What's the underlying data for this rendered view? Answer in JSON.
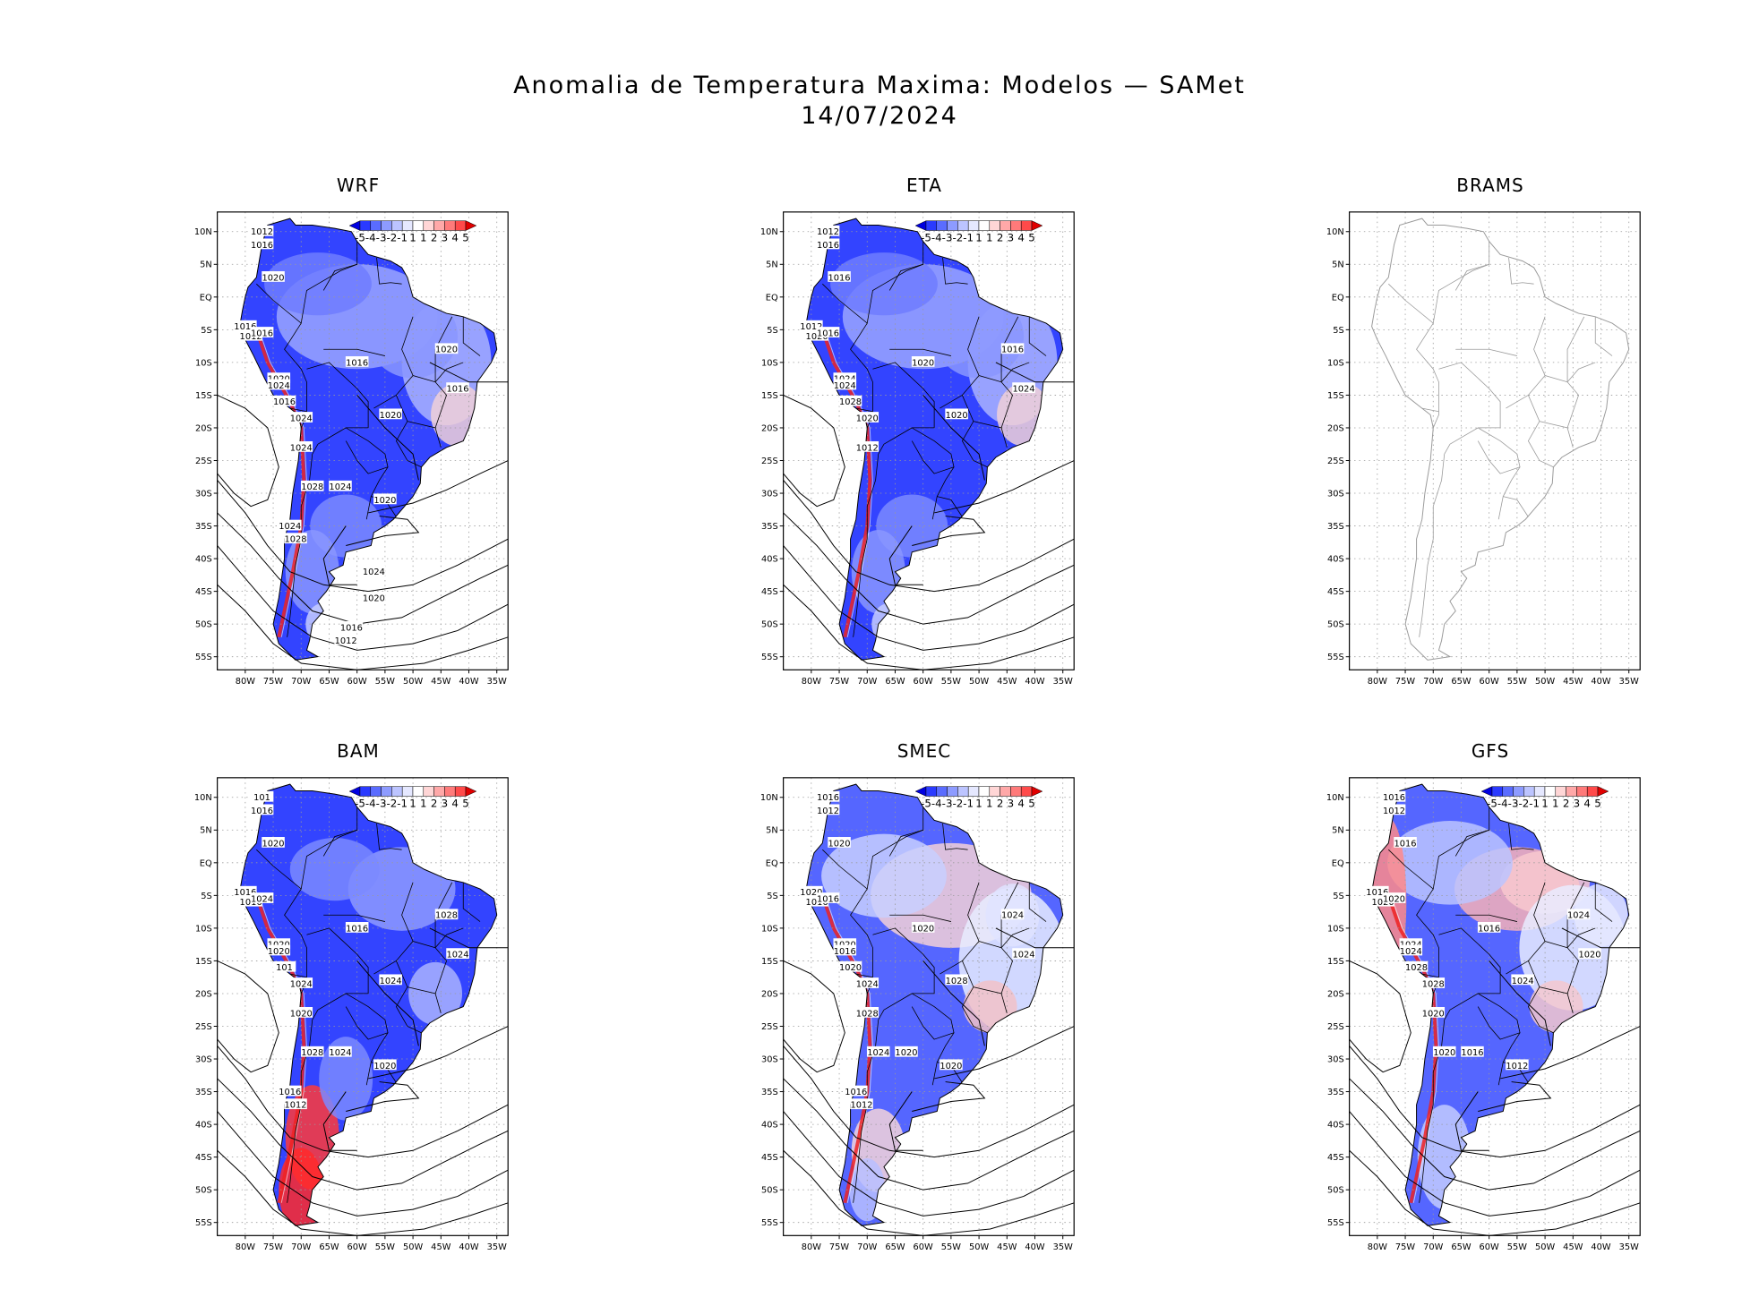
{
  "figure": {
    "title": "Anomalia de Temperatura Maxima: Modelos — SAMet",
    "date": "14/07/2024"
  },
  "axes": {
    "lat_labels": [
      "10N",
      "5N",
      "EQ",
      "5S",
      "10S",
      "15S",
      "20S",
      "25S",
      "30S",
      "35S",
      "40S",
      "45S",
      "50S",
      "55S"
    ],
    "lon_labels": [
      "80W",
      "75W",
      "70W",
      "65W",
      "60W",
      "55W",
      "50W",
      "45W",
      "40W",
      "35W"
    ]
  },
  "colorbar": {
    "labels": [
      "-5",
      "-4",
      "-3",
      "-2",
      "-1",
      "1",
      "1",
      "2",
      "3",
      "4",
      "5"
    ],
    "colors": [
      "#0000e0",
      "#2a3aff",
      "#5a6cff",
      "#8d9bff",
      "#bcc4ff",
      "#e5e8ff",
      "#ffffff",
      "#ffd6d6",
      "#ffa8a8",
      "#ff7a7a",
      "#ff4a4a",
      "#e00000"
    ]
  },
  "panels": [
    {
      "name": "WRF",
      "has_data": true,
      "style": "blue",
      "isobars": [
        {
          "text": "1012"
        },
        {
          "text": "1016"
        },
        {
          "text": "1020"
        },
        {
          "text": "1016"
        },
        {
          "text": "1012"
        },
        {
          "text": "1016"
        },
        {
          "text": "1016"
        },
        {
          "text": "1020"
        },
        {
          "text": "1024"
        },
        {
          "text": "1016"
        },
        {
          "text": "1020"
        },
        {
          "text": "1016"
        },
        {
          "text": "1024"
        },
        {
          "text": "1020"
        },
        {
          "text": "1024"
        },
        {
          "text": "1028"
        },
        {
          "text": "1024"
        },
        {
          "text": "1020"
        },
        {
          "text": "1024"
        },
        {
          "text": "1028"
        },
        {
          "text": "1024"
        },
        {
          "text": "1020"
        },
        {
          "text": "1016"
        },
        {
          "text": "1012"
        }
      ]
    },
    {
      "name": "ETA",
      "has_data": true,
      "style": "blue",
      "isobars": [
        {
          "text": "1012"
        },
        {
          "text": "1016"
        },
        {
          "text": "1016"
        },
        {
          "text": "1012"
        },
        {
          "text": "1020"
        },
        {
          "text": "1016"
        },
        {
          "text": "1020"
        },
        {
          "text": "1024"
        },
        {
          "text": "1024"
        },
        {
          "text": "1028"
        },
        {
          "text": "1020"
        },
        {
          "text": "1024"
        },
        {
          "text": "1020"
        },
        {
          "text": "1016"
        },
        {
          "text": "1012"
        }
      ]
    },
    {
      "name": "BRAMS",
      "has_data": false,
      "style": "empty",
      "isobars": []
    },
    {
      "name": "BAM",
      "has_data": true,
      "style": "bam",
      "isobars": [
        {
          "text": "101"
        },
        {
          "text": "1016"
        },
        {
          "text": "1020"
        },
        {
          "text": "1016"
        },
        {
          "text": "1016"
        },
        {
          "text": "1024"
        },
        {
          "text": "1016"
        },
        {
          "text": "1020"
        },
        {
          "text": "1020"
        },
        {
          "text": "101"
        },
        {
          "text": "1024"
        },
        {
          "text": "1024"
        },
        {
          "text": "1024"
        },
        {
          "text": "1028"
        },
        {
          "text": "1020"
        },
        {
          "text": "1028"
        },
        {
          "text": "1024"
        },
        {
          "text": "1020"
        },
        {
          "text": "1016"
        },
        {
          "text": "1012"
        }
      ]
    },
    {
      "name": "SMEC",
      "has_data": true,
      "style": "smec",
      "isobars": [
        {
          "text": "1016"
        },
        {
          "text": "1012"
        },
        {
          "text": "1020"
        },
        {
          "text": "1020"
        },
        {
          "text": "1016"
        },
        {
          "text": "1016"
        },
        {
          "text": "1020"
        },
        {
          "text": "1020"
        },
        {
          "text": "1016"
        },
        {
          "text": "1020"
        },
        {
          "text": "1028"
        },
        {
          "text": "1024"
        },
        {
          "text": "1024"
        },
        {
          "text": "1024"
        },
        {
          "text": "1028"
        },
        {
          "text": "1024"
        },
        {
          "text": "1020"
        },
        {
          "text": "1020"
        },
        {
          "text": "1016"
        },
        {
          "text": "1012"
        }
      ]
    },
    {
      "name": "GFS",
      "has_data": true,
      "style": "gfs",
      "isobars": [
        {
          "text": "1016"
        },
        {
          "text": "1012"
        },
        {
          "text": "1016"
        },
        {
          "text": "1016"
        },
        {
          "text": "1020"
        },
        {
          "text": "1020"
        },
        {
          "text": "1016"
        },
        {
          "text": "1024"
        },
        {
          "text": "1024"
        },
        {
          "text": "1028"
        },
        {
          "text": "1024"
        },
        {
          "text": "1020"
        },
        {
          "text": "1028"
        },
        {
          "text": "1024"
        },
        {
          "text": "1020"
        },
        {
          "text": "1020"
        },
        {
          "text": "1016"
        },
        {
          "text": "1012"
        }
      ]
    }
  ]
}
